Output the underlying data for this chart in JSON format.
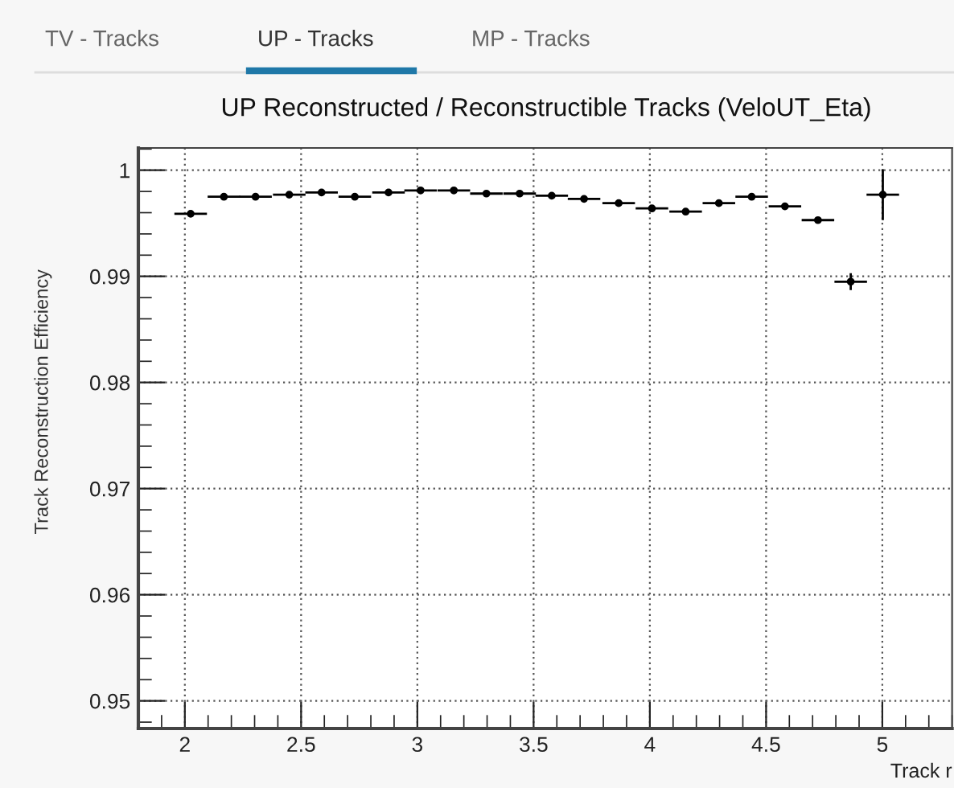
{
  "chart_data": {
    "type": "scatter",
    "title": "UP Reconstructed / Reconstructible Tracks (VeloUT_Eta)",
    "xlabel": "Track r",
    "ylabel": "Track Reconstruction Efficiency",
    "annotations": [
      "TV - Tracks",
      "UP - Tracks",
      "MP - Tracks"
    ],
    "x": [
      2.025,
      2.168,
      2.304,
      2.449,
      2.588,
      2.731,
      2.876,
      3.014,
      3.157,
      3.297,
      3.44,
      3.578,
      3.717,
      3.866,
      4.009,
      4.154,
      4.297,
      4.438,
      4.581,
      4.723,
      4.864,
      5.002
    ],
    "series": [
      {
        "color": "#000000",
        "values": [
          0.9959,
          0.9975,
          0.9975,
          0.9977,
          0.9979,
          0.9975,
          0.9979,
          0.9981,
          0.9981,
          0.9978,
          0.9978,
          0.9976,
          0.9973,
          0.9969,
          0.9964,
          0.9961,
          0.9969,
          0.9975,
          0.9966,
          0.9953,
          0.9895,
          0.9977
        ],
        "errors": [
          null,
          null,
          null,
          null,
          null,
          null,
          null,
          null,
          null,
          null,
          null,
          null,
          null,
          null,
          null,
          null,
          null,
          null,
          null,
          null,
          0.0008,
          0.0024
        ],
        "xerrors": [
          0.07,
          0.07,
          0.07,
          0.07,
          0.07,
          0.07,
          0.07,
          0.07,
          0.07,
          0.07,
          0.07,
          0.07,
          0.07,
          0.07,
          0.07,
          0.07,
          0.07,
          0.07,
          0.07,
          0.07,
          0.07,
          0.07
        ]
      }
    ],
    "marker": "circle",
    "xlim": [
      1.8,
      5.3
    ],
    "ylim": [
      0.9474,
      1.0021
    ],
    "xticks": [
      2,
      {
        "value": 2.5,
        "label": "2.5"
      },
      3,
      {
        "value": 3.5,
        "label": "3.5"
      },
      4,
      {
        "value": 4.5,
        "label": "4.5"
      },
      5
    ],
    "yticks": [
      {
        "value": 0.95,
        "label": "0.95"
      },
      {
        "value": 0.96,
        "label": "0.96"
      },
      {
        "value": 0.97,
        "label": "0.97"
      },
      {
        "value": 0.98,
        "label": "0.98"
      },
      {
        "value": 0.99,
        "label": "0.99"
      },
      1
    ],
    "grid": true,
    "legend": false
  }
}
